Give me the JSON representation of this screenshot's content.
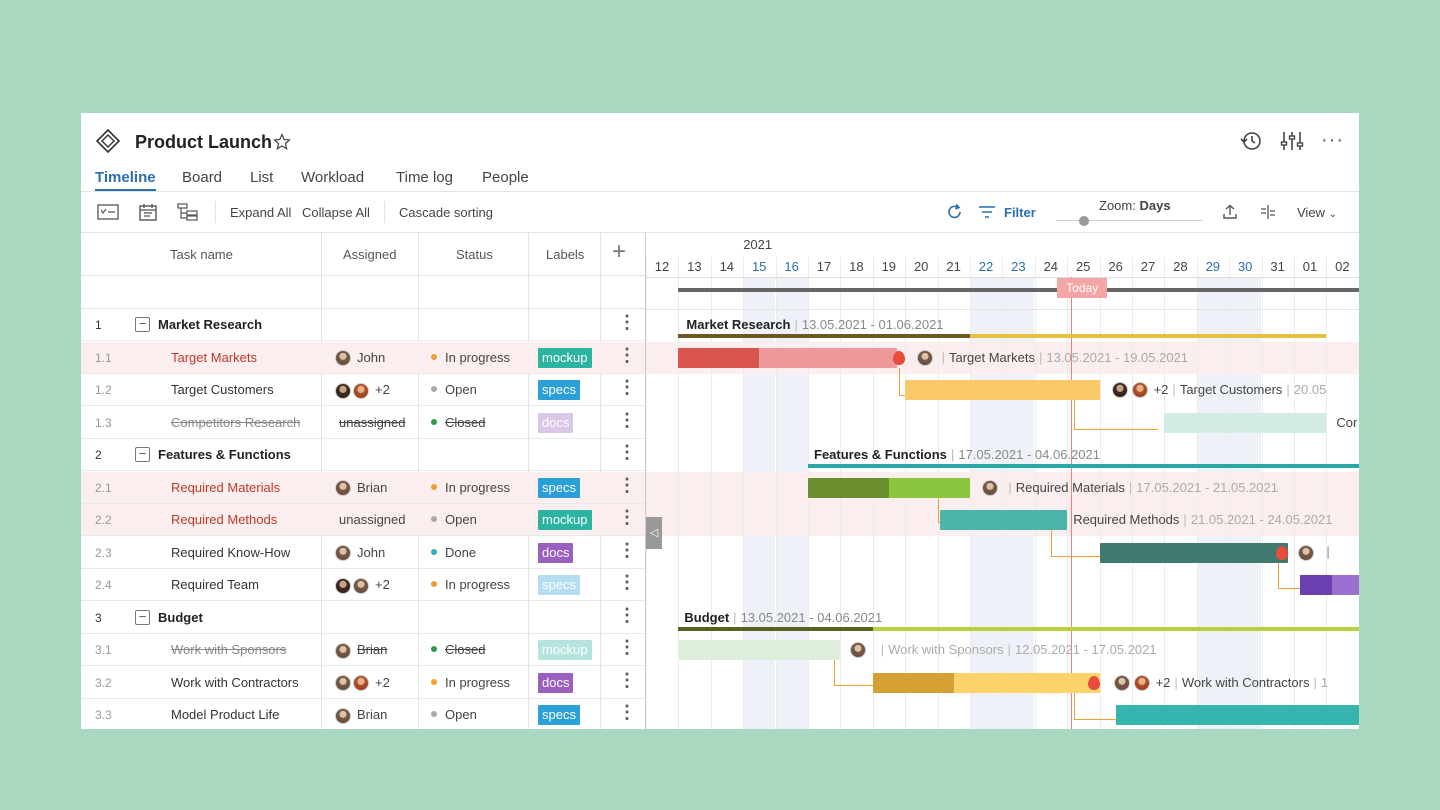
{
  "header": {
    "title": "Product Launch",
    "tabs": [
      "Timeline",
      "Board",
      "List",
      "Workload",
      "Time log",
      "People"
    ]
  },
  "toolbar": {
    "expand_all": "Expand All",
    "collapse_all": "Collapse All",
    "cascade_sorting": "Cascade sorting",
    "filter": "Filter",
    "zoom_label": "Zoom:",
    "zoom_value": "Days",
    "view": "View"
  },
  "columns": {
    "task_name": "Task name",
    "assigned": "Assigned",
    "status": "Status",
    "labels": "Labels"
  },
  "rows": [
    {
      "num": "1",
      "name": "Market Research",
      "group": true
    },
    {
      "num": "1.1",
      "name": "Target Markets",
      "assigned": "John",
      "status": "In progress",
      "label": "mockup"
    },
    {
      "num": "1.2",
      "name": "Target Customers",
      "assigned": "+2",
      "status": "Open",
      "label": "specs"
    },
    {
      "num": "1.3",
      "name": "Competitors Research",
      "assigned": "unassigned",
      "status": "Closed",
      "label": "docs"
    },
    {
      "num": "2",
      "name": "Features & Functions",
      "group": true
    },
    {
      "num": "2.1",
      "name": "Required Materials",
      "assigned": "Brian",
      "status": "In progress",
      "label": "specs"
    },
    {
      "num": "2.2",
      "name": "Required Methods",
      "assigned": "unassigned",
      "status": "Open",
      "label": "mockup"
    },
    {
      "num": "2.3",
      "name": "Required Know-How",
      "assigned": "John",
      "status": "Done",
      "label": "docs"
    },
    {
      "num": "2.4",
      "name": "Required Team",
      "assigned": "+2",
      "status": "In progress",
      "label": "specs"
    },
    {
      "num": "3",
      "name": "Budget",
      "group": true
    },
    {
      "num": "3.1",
      "name": "Work with Sponsors",
      "assigned": "Brian",
      "status": "Closed",
      "label": "mockup"
    },
    {
      "num": "3.2",
      "name": "Work with Contractors",
      "assigned": "+2",
      "status": "In progress",
      "label": "docs"
    },
    {
      "num": "3.3",
      "name": "Model Product Life",
      "assigned": "Brian",
      "status": "Open",
      "label": "specs"
    }
  ],
  "timeline": {
    "year": "2021",
    "days": [
      "12",
      "13",
      "14",
      "15",
      "16",
      "17",
      "18",
      "19",
      "20",
      "21",
      "22",
      "23",
      "24",
      "25",
      "26",
      "27",
      "28",
      "29",
      "30",
      "31",
      "01",
      "02"
    ],
    "today": "Today",
    "bars": {
      "market_research": {
        "name": "Market Research",
        "dates": "13.05.2021 - 01.06.2021"
      },
      "target_markets": {
        "name": "Target Markets",
        "dates": "13.05.2021 - 19.05.2021"
      },
      "target_customers": {
        "name": "Target Customers",
        "extra": "+2",
        "dates": "20.05"
      },
      "competitors": {
        "name": "Cor"
      },
      "features": {
        "name": "Features & Functions",
        "dates": "17.05.2021 - 04.06.2021"
      },
      "required_materials": {
        "name": "Required Materials",
        "dates": "17.05.2021 - 21.05.2021"
      },
      "required_methods": {
        "name": "Required Methods",
        "dates": "21.05.2021 - 24.05.2021"
      },
      "budget": {
        "name": "Budget",
        "dates": "13.05.2021 - 04.06.2021"
      },
      "sponsors": {
        "name": "Work with Sponsors",
        "dates": "12.05.2021 - 17.05.2021"
      },
      "contractors": {
        "name": "Work with Contractors",
        "extra": "+2",
        "dates": "1"
      }
    }
  },
  "colors": {
    "accent": "#2a6fb0",
    "label_mockup": "#2bb5a0",
    "label_specs": "#2a9fd8",
    "label_docs": "#9b5fc0",
    "status_in_progress": "#f0a030",
    "status_open": "#aaaaaa",
    "status_closed": "#2a9a4a",
    "status_done": "#2ab0c0"
  }
}
